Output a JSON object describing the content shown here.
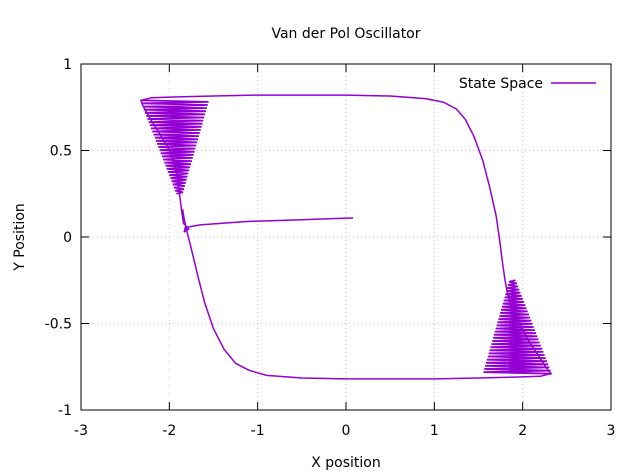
{
  "chart_data": {
    "type": "line",
    "title": "Van der Pol Oscillator",
    "xlabel": "X position",
    "ylabel": "Y Position",
    "xlim": [
      -3,
      3
    ],
    "ylim": [
      -1,
      1
    ],
    "xticks": [
      -3,
      -2,
      -1,
      0,
      1,
      2,
      3
    ],
    "yticks": [
      -1,
      -0.5,
      0,
      0.5,
      1
    ],
    "xtick_labels": [
      "-3",
      "-2",
      "-1",
      "0",
      "1",
      "2",
      "3"
    ],
    "ytick_labels": [
      "-1",
      "-0.5",
      "0",
      "0.5",
      "1"
    ],
    "grid": true,
    "legend_position": "top-right",
    "series": [
      {
        "name": "State Space",
        "color": "#9400d3",
        "points": [
          [
            0.08,
            0.11
          ],
          [
            -0.2,
            0.105
          ],
          [
            -0.5,
            0.1
          ],
          [
            -0.8,
            0.095
          ],
          [
            -1.1,
            0.09
          ],
          [
            -1.4,
            0.08
          ],
          [
            -1.65,
            0.07
          ],
          [
            -1.82,
            0.055
          ],
          [
            -1.83,
            0.03
          ],
          [
            -1.78,
            0.045
          ],
          [
            -1.84,
            0.08
          ],
          [
            -1.86,
            0.15
          ],
          [
            -1.88,
            0.23
          ],
          [
            -1.9,
            0.31
          ],
          [
            -1.92,
            0.38
          ],
          [
            -1.96,
            0.45
          ],
          [
            -2.02,
            0.52
          ],
          [
            -2.1,
            0.59
          ],
          [
            -2.2,
            0.67
          ],
          [
            -2.3,
            0.76
          ],
          [
            -2.32,
            0.79
          ],
          [
            -2.2,
            0.805
          ],
          [
            -1.9,
            0.81
          ],
          [
            -1.5,
            0.815
          ],
          [
            -1.0,
            0.82
          ],
          [
            -0.5,
            0.82
          ],
          [
            0.0,
            0.82
          ],
          [
            0.5,
            0.815
          ],
          [
            0.9,
            0.8
          ],
          [
            1.1,
            0.78
          ],
          [
            1.25,
            0.74
          ],
          [
            1.35,
            0.68
          ],
          [
            1.45,
            0.58
          ],
          [
            1.55,
            0.44
          ],
          [
            1.63,
            0.28
          ],
          [
            1.7,
            0.12
          ],
          [
            1.74,
            -0.02
          ],
          [
            1.77,
            -0.14
          ],
          [
            1.8,
            -0.25
          ],
          [
            1.83,
            -0.33
          ],
          [
            1.87,
            -0.4
          ],
          [
            1.93,
            -0.47
          ],
          [
            2.0,
            -0.54
          ],
          [
            2.08,
            -0.61
          ],
          [
            2.17,
            -0.68
          ],
          [
            2.26,
            -0.75
          ],
          [
            2.32,
            -0.79
          ],
          [
            2.2,
            -0.805
          ],
          [
            1.9,
            -0.81
          ],
          [
            1.5,
            -0.815
          ],
          [
            1.0,
            -0.82
          ],
          [
            0.5,
            -0.82
          ],
          [
            0.0,
            -0.82
          ],
          [
            -0.5,
            -0.815
          ],
          [
            -0.9,
            -0.8
          ],
          [
            -1.1,
            -0.77
          ],
          [
            -1.25,
            -0.73
          ],
          [
            -1.38,
            -0.65
          ],
          [
            -1.5,
            -0.53
          ],
          [
            -1.6,
            -0.38
          ],
          [
            -1.68,
            -0.22
          ],
          [
            -1.75,
            -0.07
          ],
          [
            -1.8,
            0.03
          ],
          [
            -1.83,
            0.1
          ],
          [
            -1.85,
            0.16
          ]
        ]
      }
    ]
  }
}
